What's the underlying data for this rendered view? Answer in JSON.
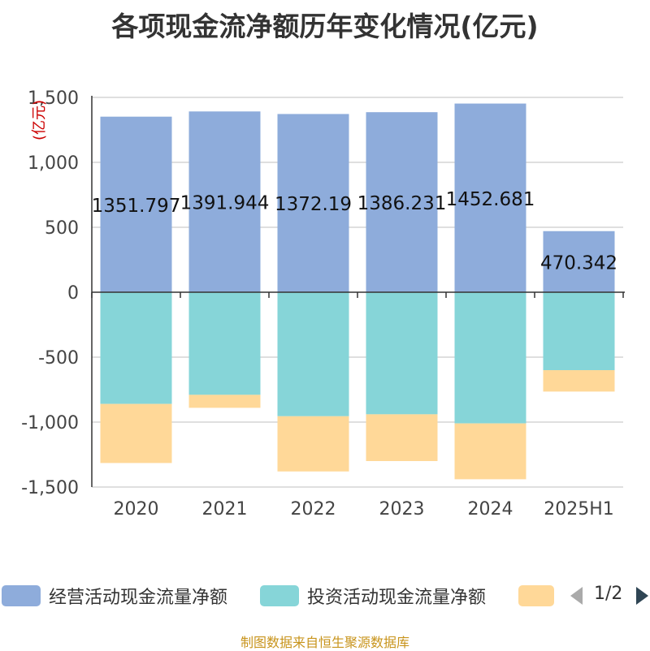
{
  "chart_data": {
    "type": "bar",
    "stacked": true,
    "title": "各项现金流净额历年变化情况(亿元)",
    "ylabel": "(亿元)",
    "ylim": [
      -1500,
      1500
    ],
    "yticks": [
      1500,
      1000,
      500,
      0,
      -500,
      -1000,
      -1500
    ],
    "ytick_labels": [
      "1,500",
      "1,000",
      "500",
      "0",
      "-500",
      "-1,000",
      "-1,500"
    ],
    "grid": true,
    "legend_position": "bottom",
    "categories": [
      "2020",
      "2021",
      "2022",
      "2023",
      "2024",
      "2025H1"
    ],
    "series": [
      {
        "name": "经营活动现金流量净额",
        "color": "#8eacdb",
        "values": [
          1351.797,
          1391.944,
          1372.19,
          1386.231,
          1452.681,
          470.342
        ],
        "labels": [
          "1351.797",
          "1391.944",
          "1372.19",
          "1386.231",
          "1452.681",
          "470.342"
        ]
      },
      {
        "name": "投资活动现金流量净额",
        "color": "#86d5d8",
        "values": [
          -860,
          -790,
          -955,
          -940,
          -1010,
          -600
        ]
      },
      {
        "name": "",
        "color": "#ffd898",
        "values": [
          -455,
          -100,
          -425,
          -360,
          -430,
          -165
        ]
      }
    ]
  },
  "legend": {
    "pager": "1/2",
    "prev_icon": "triangle-left-icon",
    "next_icon": "triangle-right-icon"
  },
  "source": "制图数据来自恒生聚源数据库"
}
